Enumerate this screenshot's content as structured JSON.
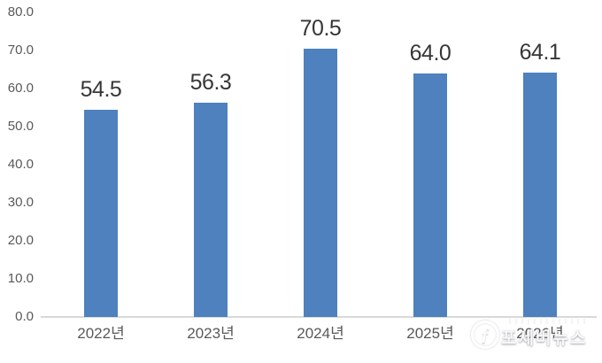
{
  "chart_data": {
    "type": "bar",
    "title": "",
    "xlabel": "",
    "ylabel": "",
    "categories": [
      "2022년",
      "2023년",
      "2024년",
      "2025년",
      "2026년"
    ],
    "values": [
      54.5,
      56.3,
      70.5,
      64.0,
      64.1
    ],
    "value_labels": [
      "54.5",
      "56.3",
      "70.5",
      "64.0",
      "64.1"
    ],
    "ylim": [
      0,
      80
    ],
    "ytick_step": 10,
    "ytick_labels": [
      "0.0",
      "10.0",
      "20.0",
      "30.0",
      "40.0",
      "50.0",
      "60.0",
      "70.0",
      "80.0"
    ],
    "grid": false,
    "legend_position": "none",
    "bar_color": "#4e81bd",
    "value_label_color": "#363636",
    "axis_label_color": "#595959",
    "axis_line_color": "#d9d9d9"
  },
  "watermark": {
    "logo_glyph": "ƒ",
    "text": "포세버뉴스"
  }
}
